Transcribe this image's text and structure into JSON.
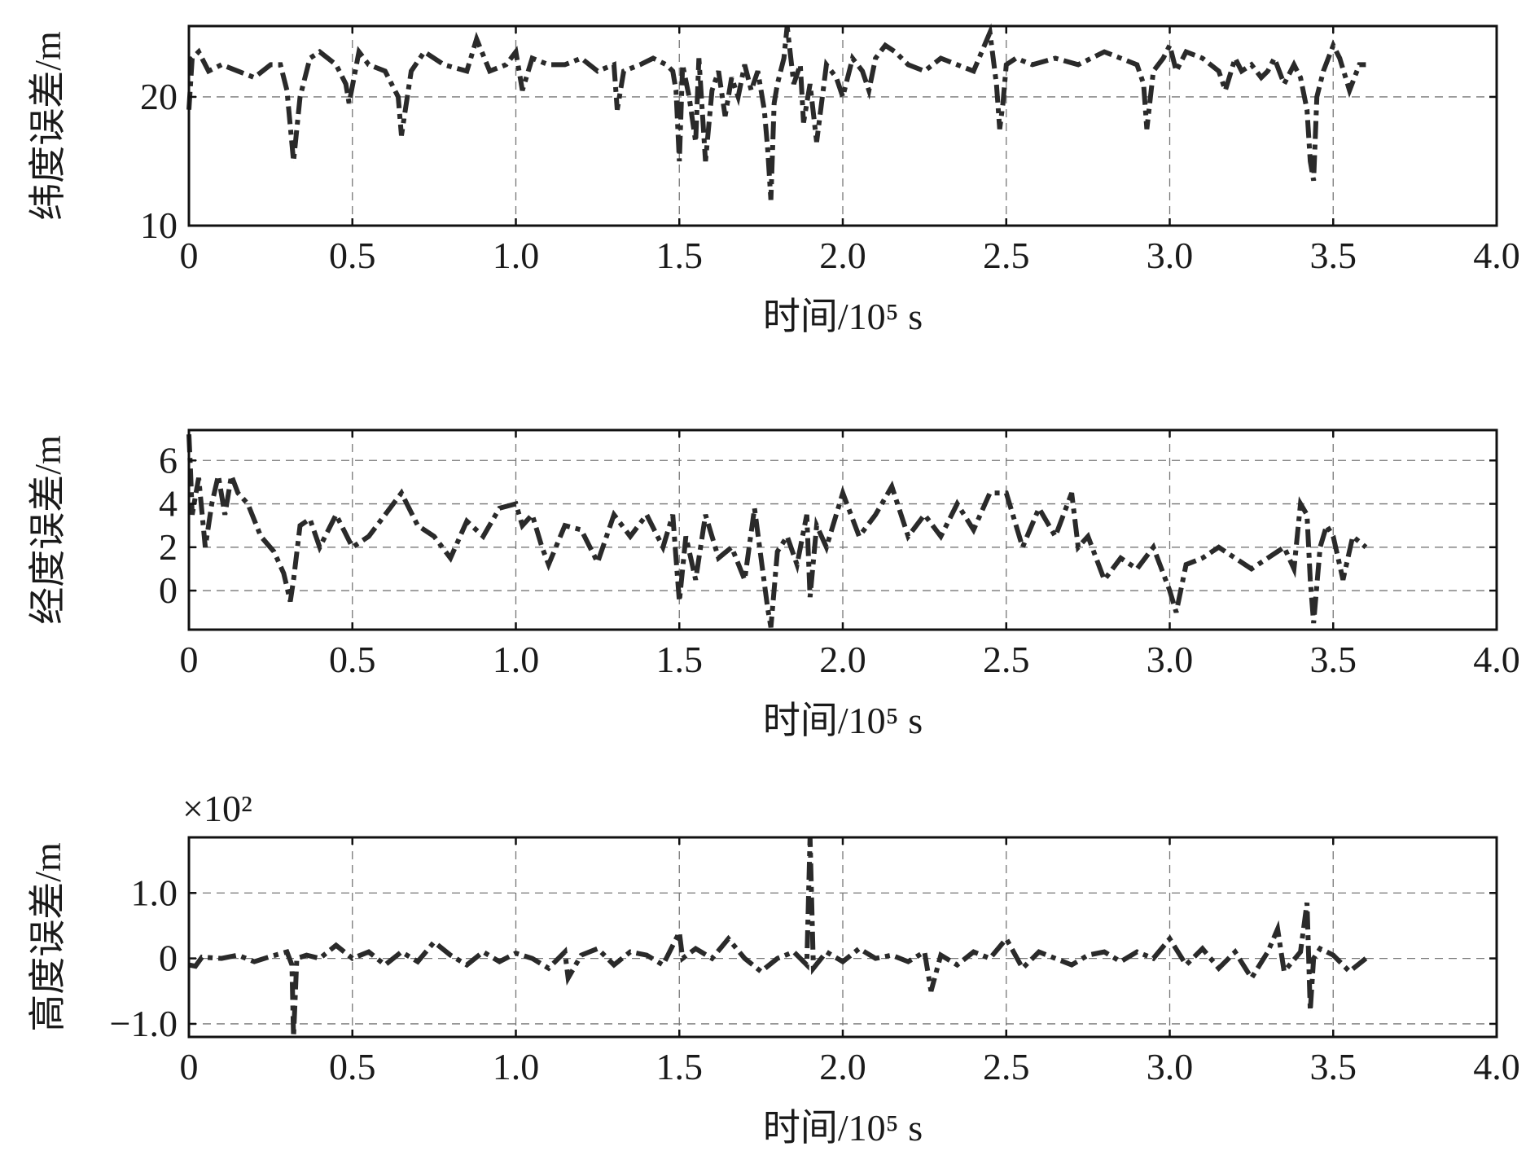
{
  "chart_data": [
    {
      "type": "line",
      "title": "",
      "xlabel": "时间/10⁵ s",
      "ylabel": "纬度误差/m",
      "xlim": [
        0,
        4.0
      ],
      "ylim": [
        10,
        25.5
      ],
      "xticks": [
        0,
        0.5,
        1.0,
        1.5,
        2.0,
        2.5,
        3.0,
        3.5,
        4.0
      ],
      "xtick_labels": [
        "0",
        "0.5",
        "1.0",
        "1.5",
        "2.0",
        "2.5",
        "3.0",
        "3.5",
        "4.0"
      ],
      "yticks": [
        10,
        20
      ],
      "ytick_labels": [
        "10",
        "20"
      ],
      "grid": true,
      "line_style": "dash-dot",
      "series": [
        {
          "x": [
            0,
            0.01,
            0.03,
            0.06,
            0.1,
            0.15,
            0.2,
            0.25,
            0.28,
            0.3,
            0.32,
            0.34,
            0.37,
            0.4,
            0.45,
            0.48,
            0.49,
            0.52,
            0.55,
            0.6,
            0.64,
            0.65,
            0.68,
            0.72,
            0.78,
            0.85,
            0.88,
            0.92,
            0.97,
            1.0,
            1.02,
            1.05,
            1.1,
            1.15,
            1.2,
            1.25,
            1.3,
            1.31,
            1.33,
            1.38,
            1.42,
            1.46,
            1.48,
            1.49,
            1.5,
            1.51,
            1.53,
            1.55,
            1.56,
            1.58,
            1.6,
            1.62,
            1.64,
            1.66,
            1.68,
            1.7,
            1.72,
            1.74,
            1.76,
            1.77,
            1.78,
            1.79,
            1.8,
            1.82,
            1.83,
            1.85,
            1.87,
            1.88,
            1.9,
            1.92,
            1.95,
            1.98,
            2.0,
            2.03,
            2.06,
            2.08,
            2.1,
            2.13,
            2.16,
            2.2,
            2.25,
            2.3,
            2.35,
            2.4,
            2.45,
            2.47,
            2.48,
            2.49,
            2.5,
            2.53,
            2.58,
            2.65,
            2.72,
            2.8,
            2.85,
            2.9,
            2.92,
            2.93,
            2.95,
            2.98,
            3.0,
            3.02,
            3.05,
            3.1,
            3.15,
            3.17,
            3.2,
            3.22,
            3.25,
            3.28,
            3.3,
            3.32,
            3.35,
            3.38,
            3.4,
            3.42,
            3.43,
            3.44,
            3.45,
            3.47,
            3.5,
            3.52,
            3.55,
            3.58,
            3.6
          ],
          "y": [
            19.0,
            23.0,
            23.5,
            22.0,
            22.5,
            22.0,
            21.5,
            22.5,
            22.5,
            20.5,
            15.0,
            20.0,
            23.0,
            23.5,
            22.5,
            21.0,
            19.5,
            23.5,
            22.5,
            22.0,
            20.0,
            17.0,
            22.0,
            23.5,
            22.5,
            22.0,
            24.5,
            22.0,
            22.5,
            23.5,
            20.5,
            23.0,
            22.5,
            22.5,
            23.0,
            22.0,
            22.5,
            19.0,
            22.0,
            22.5,
            23.0,
            22.5,
            22.0,
            20.5,
            15.0,
            22.5,
            20.0,
            16.5,
            23.0,
            15.0,
            20.5,
            22.0,
            18.5,
            21.5,
            20.0,
            22.5,
            20.5,
            22.0,
            19.0,
            16.0,
            12.0,
            19.5,
            21.0,
            23.0,
            25.5,
            21.0,
            22.5,
            18.0,
            21.0,
            16.5,
            22.5,
            21.5,
            20.0,
            23.0,
            22.0,
            20.5,
            23.0,
            24.0,
            23.5,
            22.5,
            22.0,
            23.0,
            22.5,
            22.0,
            25.0,
            21.0,
            17.5,
            19.5,
            22.5,
            23.0,
            22.5,
            23.0,
            22.5,
            23.5,
            23.0,
            22.5,
            21.0,
            17.5,
            22.0,
            23.0,
            24.0,
            22.0,
            23.5,
            23.0,
            22.0,
            20.5,
            23.0,
            22.0,
            22.5,
            21.5,
            22.0,
            23.0,
            21.0,
            22.5,
            21.5,
            19.0,
            15.0,
            13.5,
            20.0,
            22.0,
            24.0,
            23.0,
            20.5,
            22.5,
            22.5
          ]
        }
      ]
    },
    {
      "type": "line",
      "title": "",
      "xlabel": "时间/10⁵ s",
      "ylabel": "经度误差/m",
      "xlim": [
        0,
        4.0
      ],
      "ylim": [
        -1.8,
        7.4
      ],
      "xticks": [
        0,
        0.5,
        1.0,
        1.5,
        2.0,
        2.5,
        3.0,
        3.5,
        4.0
      ],
      "xtick_labels": [
        "0",
        "0.5",
        "1.0",
        "1.5",
        "2.0",
        "2.5",
        "3.0",
        "3.5",
        "4.0"
      ],
      "yticks": [
        0,
        2,
        4,
        6
      ],
      "ytick_labels": [
        "0",
        "2",
        "4",
        "6"
      ],
      "grid": true,
      "line_style": "dash-dot",
      "series": [
        {
          "x": [
            0,
            0.005,
            0.01,
            0.03,
            0.05,
            0.07,
            0.09,
            0.11,
            0.13,
            0.15,
            0.18,
            0.22,
            0.26,
            0.29,
            0.31,
            0.32,
            0.34,
            0.37,
            0.4,
            0.45,
            0.5,
            0.55,
            0.6,
            0.65,
            0.7,
            0.75,
            0.8,
            0.85,
            0.9,
            0.95,
            1.0,
            1.02,
            1.05,
            1.08,
            1.1,
            1.15,
            1.2,
            1.25,
            1.3,
            1.35,
            1.4,
            1.45,
            1.48,
            1.49,
            1.5,
            1.52,
            1.55,
            1.58,
            1.62,
            1.66,
            1.7,
            1.73,
            1.75,
            1.77,
            1.78,
            1.8,
            1.83,
            1.86,
            1.89,
            1.9,
            1.92,
            1.95,
            2.0,
            2.05,
            2.1,
            2.15,
            2.2,
            2.25,
            2.3,
            2.35,
            2.4,
            2.45,
            2.5,
            2.55,
            2.6,
            2.65,
            2.7,
            2.72,
            2.75,
            2.8,
            2.85,
            2.9,
            2.95,
            3.0,
            3.02,
            3.05,
            3.1,
            3.15,
            3.2,
            3.25,
            3.3,
            3.35,
            3.38,
            3.4,
            3.42,
            3.43,
            3.44,
            3.46,
            3.48,
            3.5,
            3.53,
            3.56,
            3.6
          ],
          "y": [
            7.2,
            5.5,
            3.5,
            5.2,
            2.0,
            4.0,
            5.3,
            3.5,
            5.3,
            4.5,
            4.0,
            2.5,
            1.8,
            0.8,
            -0.5,
            0.5,
            3.0,
            3.3,
            2.0,
            3.5,
            2.0,
            2.5,
            3.5,
            4.5,
            3.0,
            2.5,
            1.5,
            3.2,
            2.5,
            3.8,
            4.0,
            3.0,
            3.5,
            2.0,
            1.2,
            3.0,
            2.8,
            1.3,
            3.5,
            2.5,
            3.5,
            2.0,
            3.5,
            1.5,
            -0.5,
            2.5,
            0.5,
            3.5,
            1.5,
            2.0,
            0.5,
            3.8,
            1.5,
            -0.8,
            -1.7,
            1.8,
            2.5,
            1.2,
            3.5,
            -0.3,
            3.0,
            2.0,
            4.5,
            2.5,
            3.5,
            4.8,
            2.5,
            3.5,
            2.5,
            4.0,
            2.8,
            4.5,
            4.5,
            2.0,
            3.8,
            2.5,
            4.5,
            2.0,
            2.5,
            0.5,
            1.5,
            1.0,
            2.0,
            0.0,
            -1.0,
            1.2,
            1.5,
            2.0,
            1.5,
            1.0,
            1.5,
            2.0,
            1.0,
            4.0,
            3.5,
            0.5,
            -1.5,
            2.0,
            3.0,
            2.5,
            0.5,
            2.5,
            2.0
          ]
        }
      ]
    },
    {
      "type": "line",
      "title": "",
      "xlabel": "时间/10⁵ s",
      "ylabel": "高度误差/m",
      "y_multiplier": "×10²",
      "xlim": [
        0,
        4.0
      ],
      "ylim": [
        -1.2,
        1.85
      ],
      "xticks": [
        0,
        0.5,
        1.0,
        1.5,
        2.0,
        2.5,
        3.0,
        3.5,
        4.0
      ],
      "xtick_labels": [
        "0",
        "0.5",
        "1.0",
        "1.5",
        "2.0",
        "2.5",
        "3.0",
        "3.5",
        "4.0"
      ],
      "yticks": [
        -1.0,
        0,
        1.0
      ],
      "ytick_labels": [
        "−1.0",
        "0",
        "1.0"
      ],
      "grid": true,
      "line_style": "dash-dot",
      "series": [
        {
          "x": [
            0,
            0.02,
            0.04,
            0.1,
            0.15,
            0.2,
            0.25,
            0.3,
            0.315,
            0.32,
            0.33,
            0.36,
            0.4,
            0.45,
            0.5,
            0.55,
            0.6,
            0.65,
            0.7,
            0.75,
            0.8,
            0.85,
            0.9,
            0.95,
            1.0,
            1.05,
            1.1,
            1.15,
            1.16,
            1.2,
            1.25,
            1.3,
            1.35,
            1.4,
            1.45,
            1.5,
            1.51,
            1.55,
            1.6,
            1.65,
            1.7,
            1.75,
            1.8,
            1.85,
            1.89,
            1.9,
            1.91,
            1.95,
            2.0,
            2.05,
            2.1,
            2.15,
            2.2,
            2.25,
            2.27,
            2.3,
            2.35,
            2.4,
            2.45,
            2.5,
            2.55,
            2.6,
            2.65,
            2.7,
            2.75,
            2.8,
            2.85,
            2.9,
            2.95,
            3.0,
            3.05,
            3.1,
            3.15,
            3.2,
            3.25,
            3.3,
            3.33,
            3.35,
            3.4,
            3.42,
            3.43,
            3.44,
            3.46,
            3.5,
            3.55,
            3.6
          ],
          "y": [
            -0.1,
            -0.12,
            0.02,
            0.0,
            0.05,
            -0.05,
            0.03,
            0.1,
            -0.1,
            -1.2,
            0.0,
            0.05,
            0.0,
            0.2,
            0.0,
            0.1,
            -0.1,
            0.1,
            -0.05,
            0.25,
            0.05,
            -0.1,
            0.1,
            -0.05,
            0.08,
            0.0,
            -0.15,
            0.1,
            -0.3,
            0.05,
            0.15,
            -0.1,
            0.1,
            0.05,
            -0.1,
            0.4,
            0.0,
            0.15,
            0.0,
            0.3,
            0.0,
            -0.2,
            0.0,
            0.1,
            -0.1,
            1.85,
            -0.15,
            0.1,
            -0.05,
            0.15,
            0.0,
            0.05,
            -0.05,
            0.1,
            -0.5,
            0.05,
            -0.1,
            0.1,
            0.0,
            0.3,
            -0.15,
            0.1,
            0.0,
            -0.1,
            0.05,
            0.1,
            -0.05,
            0.1,
            0.0,
            0.3,
            -0.1,
            0.15,
            -0.15,
            0.1,
            -0.3,
            0.1,
            0.45,
            -0.2,
            0.1,
            0.85,
            -0.8,
            0.0,
            0.15,
            0.05,
            -0.2,
            0.0
          ]
        }
      ]
    }
  ]
}
